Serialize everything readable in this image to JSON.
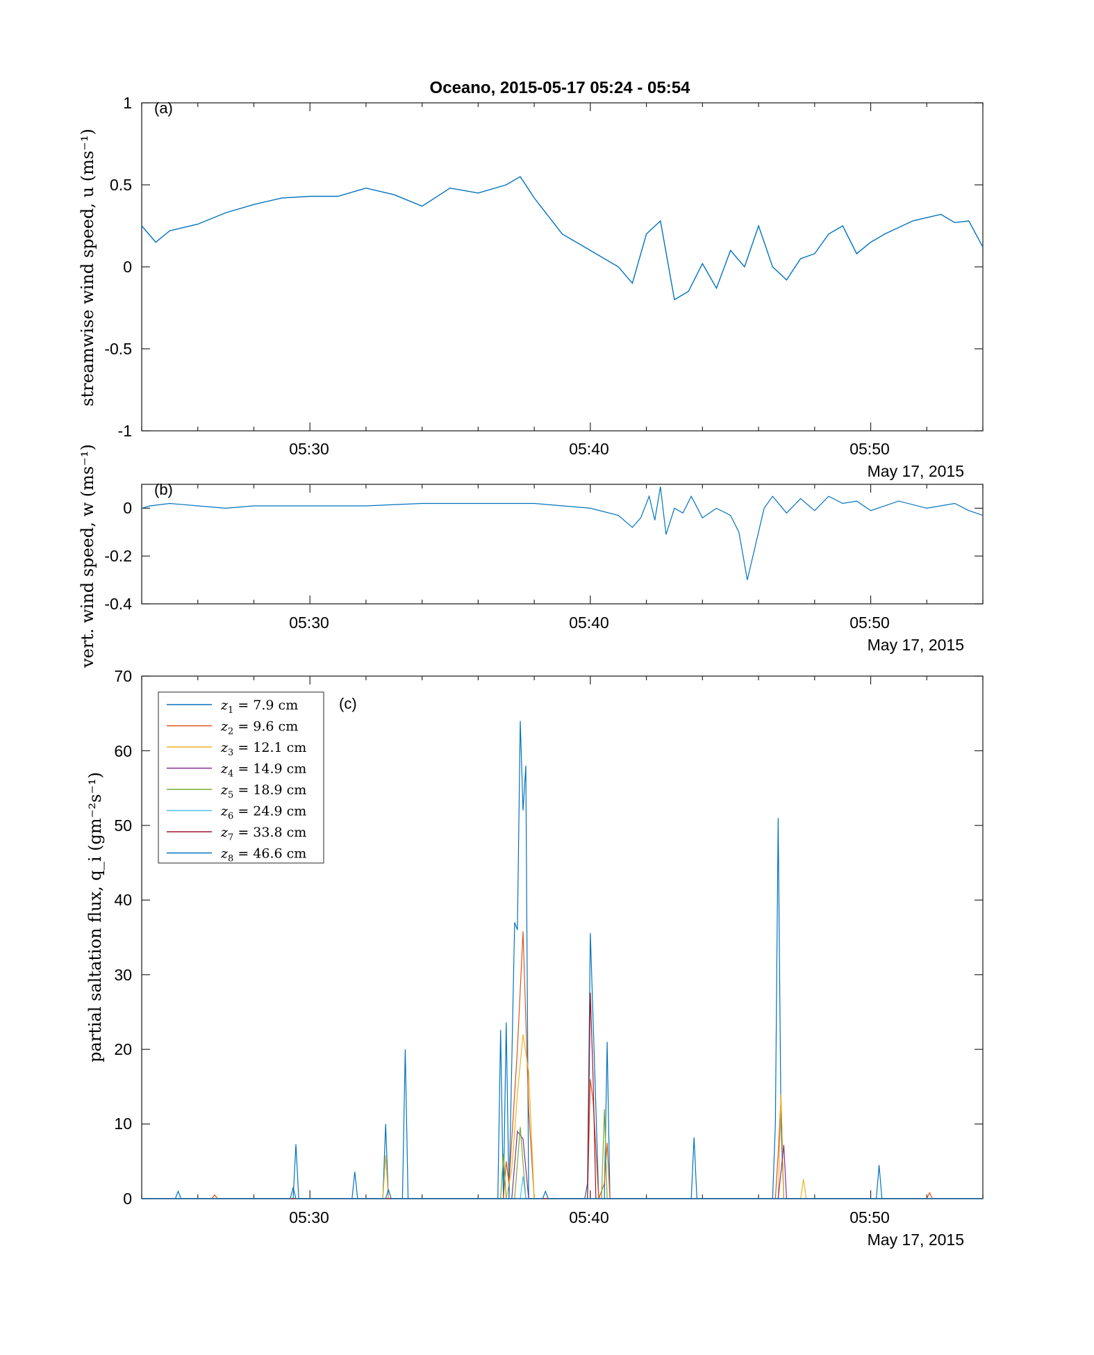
{
  "figure_title": "Oceano, 2015-05-17 05:24 - 05:54",
  "date_label": "May 17, 2015",
  "colors": {
    "u": "#0072BD",
    "w": "#0072BD",
    "z1": "#0072BD",
    "z2": "#D95319",
    "z3": "#EDB120",
    "z4": "#7E2F8E",
    "z5": "#77AC30",
    "z6": "#4DBEEE",
    "z7": "#A2142F",
    "z8": "#0072BD"
  },
  "chart_data": [
    {
      "id": "a",
      "type": "line",
      "panel_label": "(a)",
      "ylabel": "streamwise wind speed, u (ms⁻¹)",
      "xlim": [
        "05:24",
        "05:54"
      ],
      "ylim": [
        -1,
        1
      ],
      "xticks": [
        "05:30",
        "05:40",
        "05:50"
      ],
      "yticks": [
        "1",
        "0.5",
        "0",
        "-0.5",
        "-1"
      ],
      "series": [
        {
          "x": [
            "05:24.0",
            "05:24.5",
            "05:25.0",
            "05:26.0",
            "05:27.0",
            "05:28.0",
            "05:29.0",
            "05:30.0",
            "05:31.0",
            "05:32.0",
            "05:33.0",
            "05:34.0",
            "05:35.0",
            "05:36.0",
            "05:37.0",
            "05:37.5",
            "05:38.0",
            "05:39.0",
            "05:40.0",
            "05:41.0",
            "05:41.5",
            "05:42.0",
            "05:42.5",
            "05:43.0",
            "05:43.5",
            "05:44.0",
            "05:44.5",
            "05:45.0",
            "05:45.5",
            "05:46.0",
            "05:46.5",
            "05:47.0",
            "05:47.5",
            "05:48.0",
            "05:48.5",
            "05:49.0",
            "05:49.5",
            "05:50.0",
            "05:50.5",
            "05:51.0",
            "05:51.5",
            "05:52.0",
            "05:52.5",
            "05:53.0",
            "05:53.5",
            "05:54.0"
          ],
          "y": [
            0.25,
            0.15,
            0.22,
            0.26,
            0.33,
            0.38,
            0.42,
            0.43,
            0.43,
            0.48,
            0.44,
            0.37,
            0.48,
            0.45,
            0.5,
            0.55,
            0.42,
            0.2,
            0.1,
            0.0,
            -0.1,
            0.2,
            0.28,
            -0.2,
            -0.15,
            0.02,
            -0.13,
            0.1,
            0.0,
            0.25,
            0.0,
            -0.08,
            0.05,
            0.08,
            0.2,
            0.25,
            0.08,
            0.15,
            0.2,
            0.24,
            0.28,
            0.3,
            0.32,
            0.27,
            0.28,
            0.12
          ]
        }
      ]
    },
    {
      "id": "b",
      "type": "line",
      "panel_label": "(b)",
      "ylabel": "vert. wind speed, w (ms⁻¹)",
      "xlim": [
        "05:24",
        "05:54"
      ],
      "ylim": [
        -0.4,
        0.1
      ],
      "xticks": [
        "05:30",
        "05:40",
        "05:50"
      ],
      "yticks": [
        "0",
        "-0.2",
        "-0.4"
      ],
      "series": [
        {
          "x": [
            "05:24.0",
            "05:24.3",
            "05:25.0",
            "05:26.0",
            "05:27.0",
            "05:28.0",
            "05:30.0",
            "05:32.0",
            "05:34.0",
            "05:36.0",
            "05:38.0",
            "05:40.0",
            "05:41.0",
            "05:41.5",
            "05:41.8",
            "05:42.1",
            "05:42.3",
            "05:42.5",
            "05:42.7",
            "05:43.0",
            "05:43.3",
            "05:43.6",
            "05:44.0",
            "05:44.5",
            "05:45.0",
            "05:45.3",
            "05:45.6",
            "05:45.9",
            "05:46.2",
            "05:46.5",
            "05:47.0",
            "05:47.5",
            "05:48.0",
            "05:48.5",
            "05:49.0",
            "05:49.5",
            "05:50.0",
            "05:51.0",
            "05:52.0",
            "05:53.0",
            "05:53.5",
            "05:54.0"
          ],
          "y": [
            0.0,
            0.01,
            0.02,
            0.01,
            0.0,
            0.01,
            0.01,
            0.01,
            0.02,
            0.02,
            0.02,
            0.0,
            -0.03,
            -0.08,
            -0.04,
            0.05,
            -0.05,
            0.09,
            -0.11,
            0.0,
            -0.02,
            0.05,
            -0.04,
            0.0,
            -0.03,
            -0.1,
            -0.3,
            -0.15,
            0.0,
            0.05,
            -0.02,
            0.04,
            -0.01,
            0.05,
            0.02,
            0.03,
            -0.01,
            0.03,
            0.0,
            0.02,
            -0.01,
            -0.03
          ]
        }
      ]
    },
    {
      "id": "c",
      "type": "line",
      "panel_label": "(c)",
      "ylabel": "partial saltation flux, q_i (gm⁻²s⁻¹)",
      "xlim": [
        "05:24",
        "05:54"
      ],
      "ylim": [
        0,
        70
      ],
      "xticks": [
        "05:30",
        "05:40",
        "05:50"
      ],
      "yticks": [
        "70",
        "60",
        "50",
        "40",
        "30",
        "20",
        "10",
        "0"
      ],
      "legend_position": "top-left",
      "series": [
        {
          "name": "z1 = 7.9 cm",
          "label_sub": "1",
          "label_rest": " = 7.9 cm",
          "x": [
            "05:24.0",
            "05:25.2",
            "05:25.3",
            "05:25.4",
            "05:29.4",
            "05:29.5",
            "05:29.6",
            "05:31.5",
            "05:31.6",
            "05:31.7",
            "05:32.6",
            "05:32.7",
            "05:32.8",
            "05:33.3",
            "05:33.4",
            "05:33.5",
            "05:36.7",
            "05:36.8",
            "05:36.9",
            "05:37.0",
            "05:37.1",
            "05:37.3",
            "05:37.4",
            "05:37.5",
            "05:37.6",
            "05:37.7",
            "05:37.8",
            "05:38.2",
            "05:39.8",
            "05:39.9",
            "05:40.0",
            "05:40.3",
            "05:40.5",
            "05:40.6",
            "05:40.7",
            "05:41.0",
            "05:43.6",
            "05:43.7",
            "05:43.8",
            "05:46.5",
            "05:46.6",
            "05:46.7",
            "05:46.8",
            "05:46.9",
            "05:50.2",
            "05:50.3",
            "05:50.4",
            "05:54.0"
          ],
          "y": [
            0,
            0,
            1,
            0,
            0,
            7.3,
            0,
            0,
            3.6,
            0,
            0,
            10,
            0,
            0,
            20,
            0,
            0,
            22.6,
            0,
            23.6,
            0,
            37,
            36,
            64,
            52,
            58,
            0,
            0,
            0,
            2,
            35.6,
            0,
            0,
            21,
            0,
            0,
            0,
            8.2,
            0,
            0,
            10,
            51,
            10,
            0,
            0,
            4.5,
            0,
            0
          ]
        },
        {
          "name": "z2 = 9.6 cm",
          "label_sub": "2",
          "label_rest": " = 9.6 cm",
          "x": [
            "05:24.0",
            "05:26.5",
            "05:26.6",
            "05:26.7",
            "05:36.9",
            "05:37.0",
            "05:37.1",
            "05:37.4",
            "05:37.6",
            "05:37.8",
            "05:38.0",
            "05:39.9",
            "05:40.0",
            "05:40.1",
            "05:40.3",
            "05:40.5",
            "05:40.6",
            "05:40.7",
            "05:46.6",
            "05:46.7",
            "05:46.8",
            "05:46.9",
            "05:52.0",
            "05:52.1",
            "05:52.2",
            "05:54.0"
          ],
          "y": [
            0,
            0,
            0.5,
            0,
            0,
            5,
            2,
            20,
            35.8,
            12,
            0,
            0,
            16,
            13,
            0,
            2,
            7.5,
            0,
            0,
            6,
            13.6,
            0,
            0,
            0.8,
            0,
            0
          ]
        },
        {
          "name": "z3 = 12.1 cm",
          "label_sub": "3",
          "label_rest": " = 12.1 cm",
          "x": [
            "05:24.0",
            "05:32.6",
            "05:32.7",
            "05:32.8",
            "05:37.0",
            "05:37.2",
            "05:37.4",
            "05:37.6",
            "05:37.8",
            "05:38.0",
            "05:46.7",
            "05:46.8",
            "05:46.9",
            "05:47.5",
            "05:47.6",
            "05:47.7",
            "05:54.0"
          ],
          "y": [
            0,
            0,
            5.8,
            0,
            0,
            4,
            14,
            22,
            17,
            0,
            0,
            14,
            0,
            0,
            2.6,
            0,
            0
          ]
        },
        {
          "name": "z4 = 14.9 cm",
          "label_sub": "4",
          "label_rest": " = 14.9 cm",
          "x": [
            "05:24.0",
            "05:37.2",
            "05:37.4",
            "05:37.6",
            "05:37.8",
            "05:46.7",
            "05:46.9",
            "05:47.0",
            "05:54.0"
          ],
          "y": [
            0,
            0,
            9,
            8,
            0,
            0,
            7.2,
            0,
            0
          ]
        },
        {
          "name": "z5 = 18.9 cm",
          "label_sub": "5",
          "label_rest": " = 18.9 cm",
          "x": [
            "05:24.0",
            "05:36.8",
            "05:36.9",
            "05:37.0",
            "05:37.3",
            "05:37.5",
            "05:37.7",
            "05:40.4",
            "05:40.5",
            "05:40.6",
            "05:54.0"
          ],
          "y": [
            0,
            0,
            6,
            0,
            0,
            9.6,
            0,
            0,
            12,
            0,
            0
          ]
        },
        {
          "name": "z6 = 24.9 cm",
          "label_sub": "6",
          "label_rest": " = 24.9 cm",
          "x": [
            "05:24.0",
            "05:37.5",
            "05:37.6",
            "05:37.7",
            "05:54.0"
          ],
          "y": [
            0,
            0,
            3,
            0,
            0
          ]
        },
        {
          "name": "z7 = 33.8 cm",
          "label_sub": "7",
          "label_rest": " = 33.8 cm",
          "x": [
            "05:24.0",
            "05:39.9",
            "05:40.0",
            "05:40.1",
            "05:40.2",
            "05:54.0"
          ],
          "y": [
            0,
            0,
            27.6,
            16,
            0,
            0
          ]
        },
        {
          "name": "z8 = 46.6 cm",
          "label_sub": "8",
          "label_rest": " = 46.6 cm",
          "x": [
            "05:24.0",
            "05:29.3",
            "05:29.4",
            "05:29.5",
            "05:32.7",
            "05:32.8",
            "05:32.9",
            "05:38.3",
            "05:38.4",
            "05:38.5",
            "05:54.0"
          ],
          "y": [
            0,
            0,
            1.5,
            0,
            0,
            1.2,
            0,
            0,
            1,
            0,
            0
          ]
        }
      ]
    }
  ]
}
